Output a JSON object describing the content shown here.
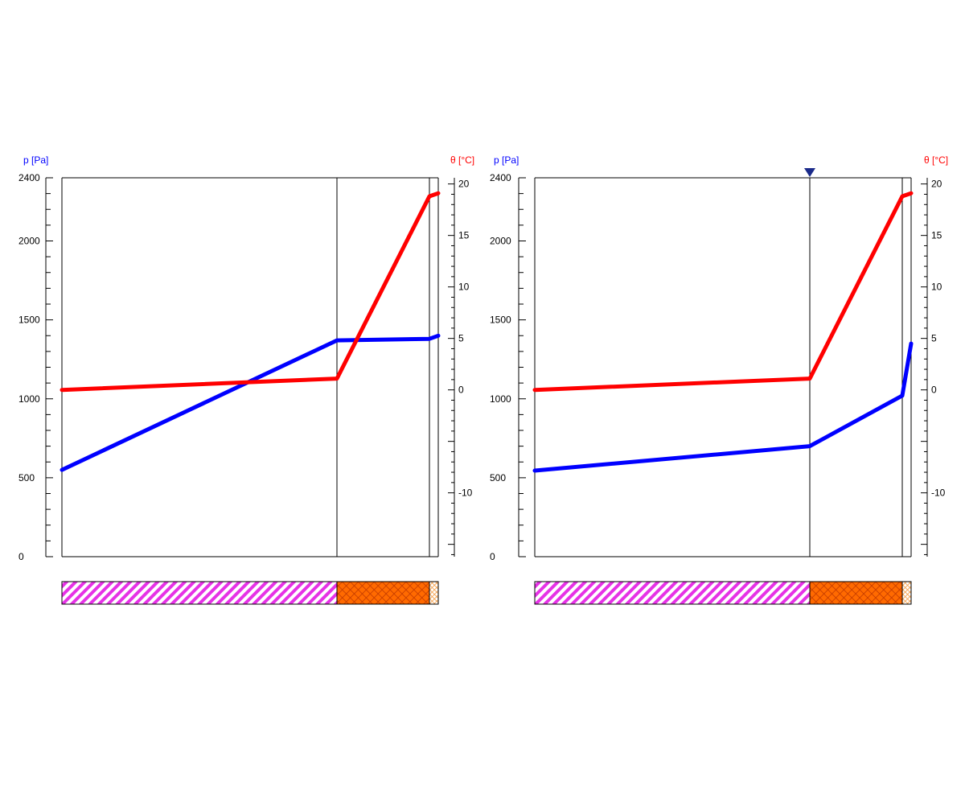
{
  "colors": {
    "pressure": "#0000ff",
    "temperature": "#ff0000",
    "marker": "#1a2a8a",
    "layer_stripes": "#e632e6",
    "layer_mesh": "#ff6a00",
    "layer_foam": "#f5b060"
  },
  "chart_data": [
    {
      "type": "line",
      "left_axis": {
        "label": "p [Pa]",
        "ylim": [
          0,
          2400
        ],
        "major_ticks": [
          0,
          500,
          1000,
          1500,
          2000,
          2400
        ],
        "tick_labels": [
          "0",
          "500",
          "1000",
          "1500",
          "2000",
          "2400"
        ]
      },
      "right_axis": {
        "label": "θ [°C]",
        "ylim": [
          -16.2,
          20.6
        ],
        "ticks": [
          -10,
          0,
          5,
          10,
          15,
          20
        ],
        "tick_labels": [
          "-10",
          "0",
          "5",
          "10",
          "15",
          "20"
        ]
      },
      "layers": [
        {
          "thickness": 342,
          "pattern": "diagonal-stripes"
        },
        {
          "thickness": 115,
          "pattern": "cross-hatch"
        },
        {
          "thickness": 11,
          "pattern": "fine-mesh"
        }
      ],
      "marker_at_boundary": null,
      "series": [
        {
          "axis": "left",
          "color": "pressure",
          "x": [
            0,
            342,
            457,
            468
          ],
          "y": [
            550,
            1370,
            1380,
            1400
          ]
        },
        {
          "axis": "right",
          "color": "temperature",
          "x": [
            0,
            342,
            457,
            468
          ],
          "y": [
            0,
            1.1,
            18.8,
            19.1
          ]
        }
      ]
    },
    {
      "type": "line",
      "left_axis": {
        "label": "p [Pa]",
        "ylim": [
          0,
          2400
        ],
        "major_ticks": [
          0,
          500,
          1000,
          1500,
          2000,
          2400
        ],
        "tick_labels": [
          "0",
          "500",
          "1000",
          "1500",
          "2000",
          "2400"
        ]
      },
      "right_axis": {
        "label": "θ [°C]",
        "ylim": [
          -16.2,
          20.6
        ],
        "ticks": [
          -10,
          0,
          5,
          10,
          15,
          20
        ],
        "tick_labels": [
          "-10",
          "0",
          "5",
          "10",
          "15",
          "20"
        ]
      },
      "layers": [
        {
          "thickness": 342,
          "pattern": "diagonal-stripes"
        },
        {
          "thickness": 115,
          "pattern": "cross-hatch"
        },
        {
          "thickness": 11,
          "pattern": "fine-mesh"
        }
      ],
      "marker_at_boundary": 1,
      "series": [
        {
          "axis": "left",
          "color": "pressure",
          "x": [
            0,
            342,
            457,
            468
          ],
          "y": [
            545,
            700,
            1020,
            1350
          ]
        },
        {
          "axis": "right",
          "color": "temperature",
          "x": [
            0,
            342,
            457,
            468
          ],
          "y": [
            0,
            1.1,
            18.8,
            19.1
          ]
        }
      ]
    }
  ]
}
